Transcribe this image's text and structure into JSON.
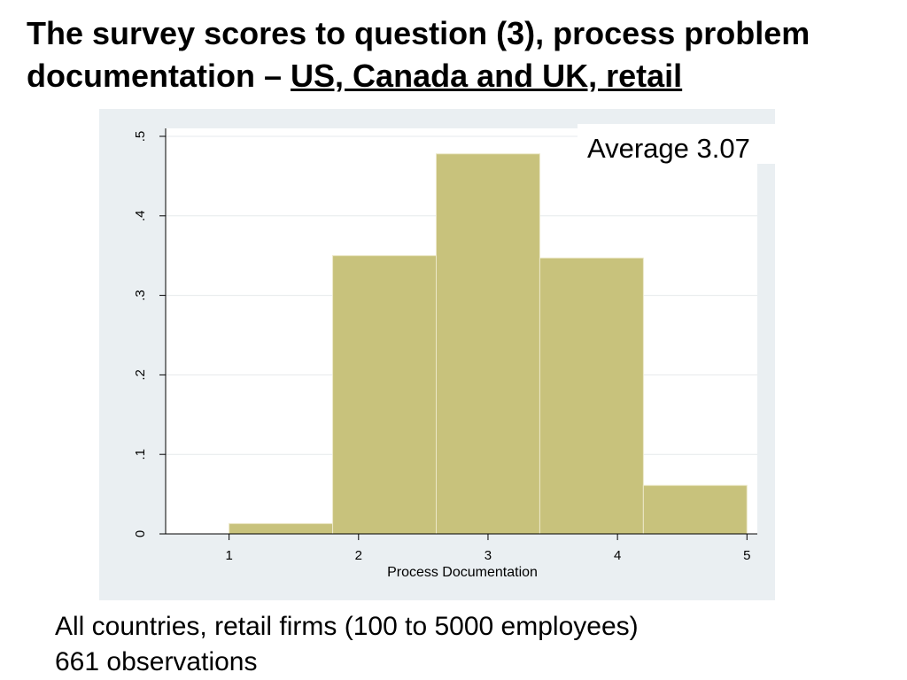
{
  "chart_data": {
    "type": "histogram",
    "title": "The survey scores to question (3), process problem documentation –",
    "title_highlight": "US, Canada and UK, retail",
    "xlabel": "Process Documentation",
    "annotation": "Average 3.07",
    "bins": [
      1,
      1.8,
      2.6,
      3.4,
      4.2,
      5
    ],
    "values": [
      0.013,
      0.35,
      0.478,
      0.347,
      0.061
    ],
    "color": "#c8c27c",
    "xlim": [
      0.51,
      5.08
    ],
    "xticks": [
      1,
      2,
      3,
      4,
      5
    ],
    "ylim": [
      0,
      0.51
    ],
    "yticks": [
      0,
      {
        "value": 0.1,
        "label": ".1"
      },
      {
        "value": 0.2,
        "label": ".2"
      },
      {
        "value": 0.3,
        "label": ".3"
      },
      {
        "value": 0.4,
        "label": ".4"
      },
      {
        "value": 0.5,
        "label": ".5"
      }
    ],
    "grid": true,
    "notes": [
      "All countries, retail firms (100 to 5000 employees)",
      "661 observations"
    ]
  }
}
